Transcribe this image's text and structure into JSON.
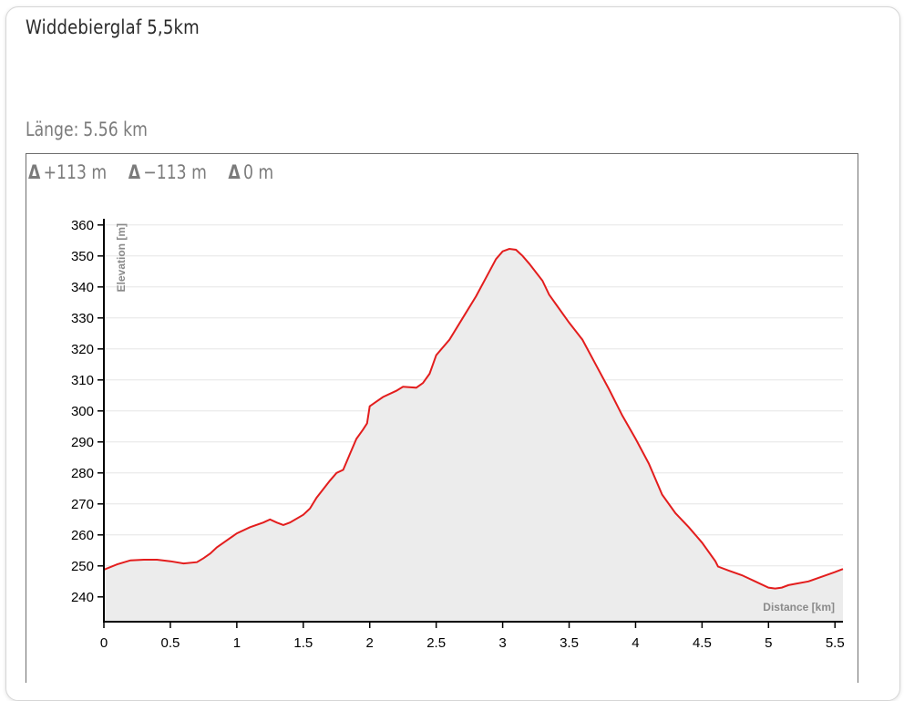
{
  "header": {
    "title": "Widdebierglaf 5,5km",
    "length_label": "Länge:",
    "length_value": "5.56 km"
  },
  "stats": {
    "ascent": "+113 m",
    "descent": "−113 m",
    "net": "0 m",
    "delta_icon": "delta-icon"
  },
  "colors": {
    "line": "#e31d1d",
    "fill": "#ececec",
    "grid": "#e6e6e6",
    "axis": "#000000",
    "axis_label": "#8a8a8a"
  },
  "chart_data": {
    "type": "area",
    "xlabel": "Distance [km]",
    "ylabel": "Elevation [m]",
    "xlim": [
      0,
      5.56
    ],
    "ylim": [
      232,
      362
    ],
    "xticks": [
      0,
      0.5,
      1,
      1.5,
      2,
      2.5,
      3,
      3.5,
      4,
      4.5,
      5,
      5.5
    ],
    "xtick_labels": [
      "0",
      "0.5",
      "1",
      "1.5",
      "2",
      "2.5",
      "3",
      "3.5",
      "4",
      "4.5",
      "5",
      "5.5"
    ],
    "yticks": [
      240,
      250,
      260,
      270,
      280,
      290,
      300,
      310,
      320,
      330,
      340,
      350,
      360
    ],
    "ytick_labels": [
      "240",
      "250",
      "260",
      "270",
      "280",
      "290",
      "300",
      "310",
      "320",
      "330",
      "340",
      "350",
      "360"
    ],
    "grid": true,
    "series": [
      {
        "x": [
          0,
          0.1,
          0.2,
          0.3,
          0.4,
          0.5,
          0.6,
          0.7,
          0.75,
          0.8,
          0.85,
          0.9,
          1.0,
          1.1,
          1.2,
          1.25,
          1.3,
          1.35,
          1.4,
          1.5,
          1.55,
          1.6,
          1.7,
          1.75,
          1.8,
          1.85,
          1.9,
          1.95,
          1.98,
          2.0,
          2.05,
          2.1,
          2.2,
          2.25,
          2.35,
          2.4,
          2.45,
          2.5,
          2.6,
          2.7,
          2.8,
          2.9,
          2.95,
          3.0,
          3.05,
          3.1,
          3.15,
          3.2,
          3.3,
          3.35,
          3.4,
          3.5,
          3.6,
          3.7,
          3.8,
          3.9,
          4.0,
          4.1,
          4.2,
          4.3,
          4.4,
          4.5,
          4.6,
          4.62,
          4.7,
          4.8,
          4.9,
          5.0,
          5.05,
          5.1,
          5.15,
          5.2,
          5.3,
          5.4,
          5.5,
          5.56
        ],
        "y": [
          248.8,
          250.5,
          251.8,
          252.0,
          252.0,
          251.5,
          250.8,
          251.2,
          252.5,
          254.0,
          256.0,
          257.5,
          260.5,
          262.5,
          264.0,
          265.0,
          264.0,
          263.2,
          264.0,
          266.5,
          268.5,
          272.0,
          277.5,
          280.0,
          281.0,
          286.0,
          291.0,
          294.0,
          296.0,
          301.5,
          303.0,
          304.5,
          306.5,
          307.8,
          307.5,
          309.0,
          312.0,
          318.0,
          323.0,
          330.0,
          337.0,
          345.0,
          349.0,
          351.5,
          352.3,
          352.0,
          350.0,
          347.5,
          342.0,
          337.5,
          334.5,
          328.5,
          323.0,
          315.0,
          307.0,
          298.5,
          291.0,
          283.0,
          273.0,
          267.0,
          262.5,
          257.5,
          251.5,
          249.8,
          248.5,
          247.0,
          245.0,
          243.0,
          242.7,
          243.0,
          243.8,
          244.2,
          245.0,
          246.5,
          248.0,
          249.0
        ]
      }
    ]
  }
}
